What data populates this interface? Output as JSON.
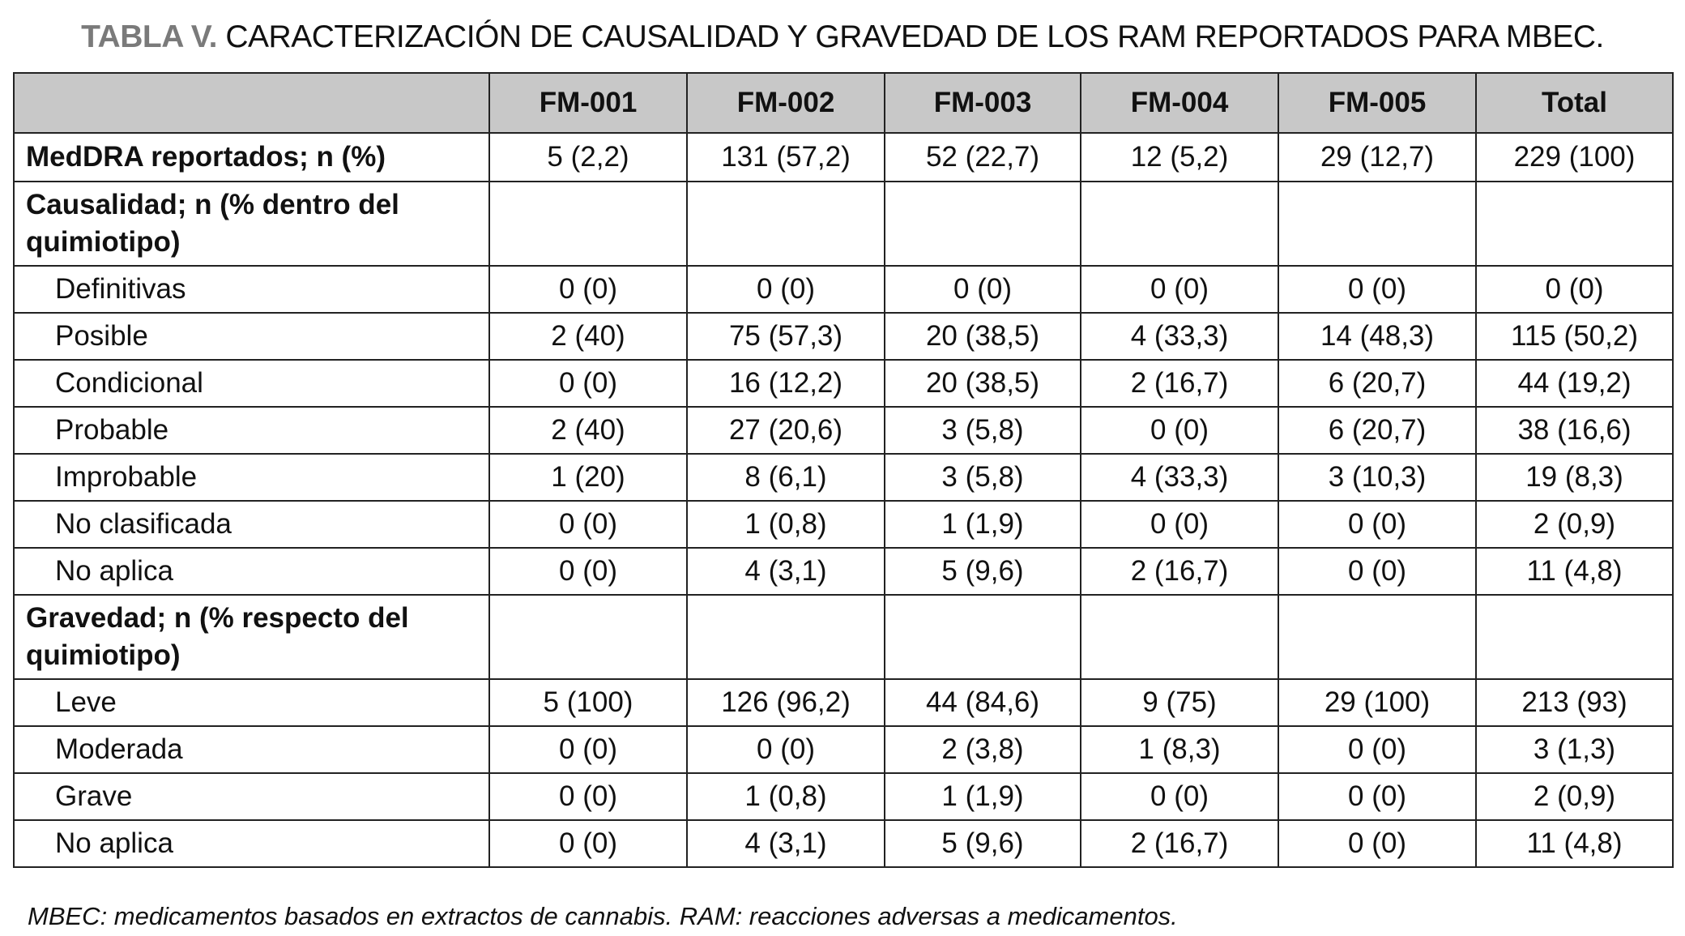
{
  "title": {
    "label": "TABLA V.",
    "text": " CARACTERIZACIÓN DE CAUSALIDAD Y GRAVEDAD DE LOS RAM REPORTADOS PARA MBEC."
  },
  "columns": [
    "",
    "FM-001",
    "FM-002",
    "FM-003",
    "FM-004",
    "FM-005",
    "Total"
  ],
  "rows": [
    {
      "type": "main",
      "label": "MedDRA reportados; n (%)",
      "values": [
        "5 (2,2)",
        "131 (57,2)",
        "52 (22,7)",
        "12 (5,2)",
        "29 (12,7)",
        "229 (100)"
      ]
    },
    {
      "type": "group",
      "label": "Causalidad; n (% dentro del quimiotipo)",
      "values": [
        "",
        "",
        "",
        "",
        "",
        ""
      ]
    },
    {
      "type": "sub",
      "label": "Definitivas",
      "values": [
        "0 (0)",
        "0 (0)",
        "0 (0)",
        "0 (0)",
        "0 (0)",
        "0 (0)"
      ]
    },
    {
      "type": "sub",
      "label": "Posible",
      "values": [
        "2 (40)",
        "75 (57,3)",
        "20 (38,5)",
        "4 (33,3)",
        "14 (48,3)",
        "115 (50,2)"
      ]
    },
    {
      "type": "sub",
      "label": "Condicional",
      "values": [
        "0 (0)",
        "16 (12,2)",
        "20 (38,5)",
        "2 (16,7)",
        "6 (20,7)",
        "44 (19,2)"
      ]
    },
    {
      "type": "sub",
      "label": "Probable",
      "values": [
        "2 (40)",
        "27 (20,6)",
        "3 (5,8)",
        "0 (0)",
        "6 (20,7)",
        "38 (16,6)"
      ]
    },
    {
      "type": "sub",
      "label": "Improbable",
      "values": [
        "1 (20)",
        "8 (6,1)",
        "3 (5,8)",
        "4 (33,3)",
        "3 (10,3)",
        "19 (8,3)"
      ]
    },
    {
      "type": "sub",
      "label": "No clasificada",
      "values": [
        "0 (0)",
        "1 (0,8)",
        "1 (1,9)",
        "0 (0)",
        "0 (0)",
        "2 (0,9)"
      ]
    },
    {
      "type": "sub",
      "label": "No aplica",
      "values": [
        "0 (0)",
        "4 (3,1)",
        "5 (9,6)",
        "2 (16,7)",
        "0 (0)",
        "11 (4,8)"
      ]
    },
    {
      "type": "group",
      "label": "Gravedad; n (% respecto del quimiotipo)",
      "values": [
        "",
        "",
        "",
        "",
        "",
        ""
      ]
    },
    {
      "type": "sub",
      "label": "Leve",
      "values": [
        "5 (100)",
        "126 (96,2)",
        "44 (84,6)",
        "9 (75)",
        "29 (100)",
        "213 (93)"
      ]
    },
    {
      "type": "sub",
      "label": "Moderada",
      "values": [
        "0 (0)",
        "0 (0)",
        "2 (3,8)",
        "1 (8,3)",
        "0 (0)",
        "3 (1,3)"
      ]
    },
    {
      "type": "sub",
      "label": "Grave",
      "values": [
        "0 (0)",
        "1 (0,8)",
        "1 (1,9)",
        "0 (0)",
        "0 (0)",
        "2 (0,9)"
      ]
    },
    {
      "type": "sub",
      "label": "No aplica",
      "values": [
        "0 (0)",
        "4 (3,1)",
        "5 (9,6)",
        "2 (16,7)",
        "0 (0)",
        "11 (4,8)"
      ]
    }
  ],
  "footnote": "MBEC: medicamentos basados en extractos de cannabis. RAM: reacciones adversas a medicamentos."
}
